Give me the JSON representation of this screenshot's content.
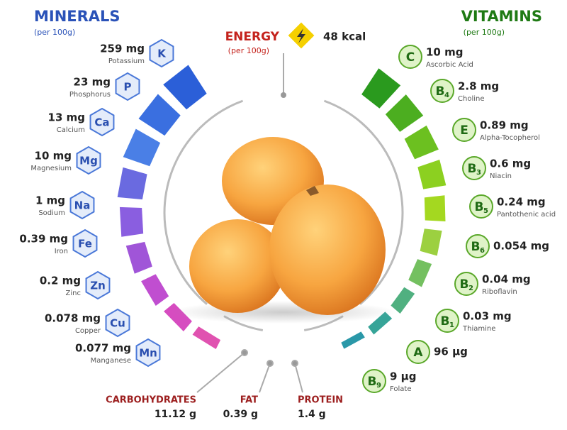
{
  "minerals": {
    "title": "MINERALS",
    "subtitle": "(per 100g)",
    "items": [
      {
        "amount": "259 mg",
        "name": "Potassium",
        "symbol": "K"
      },
      {
        "amount": "23 mg",
        "name": "Phosphorus",
        "symbol": "P"
      },
      {
        "amount": "13 mg",
        "name": "Calcium",
        "symbol": "Ca"
      },
      {
        "amount": "10 mg",
        "name": "Magnesium",
        "symbol": "Mg"
      },
      {
        "amount": "1 mg",
        "name": "Sodium",
        "symbol": "Na"
      },
      {
        "amount": "0.39 mg",
        "name": "Iron",
        "symbol": "Fe"
      },
      {
        "amount": "0.2 mg",
        "name": "Zinc",
        "symbol": "Zn"
      },
      {
        "amount": "0.078 mg",
        "name": "Copper",
        "symbol": "Cu"
      },
      {
        "amount": "0.077 mg",
        "name": "Manganese",
        "symbol": "Mn"
      }
    ]
  },
  "vitamins": {
    "title": "VITAMINS",
    "subtitle": "(per 100g)",
    "items": [
      {
        "amount": "10 mg",
        "name": "Ascorbic Acid",
        "letter": "C"
      },
      {
        "amount": "2.8 mg",
        "name": "Choline",
        "letter": "B",
        "sub": "4"
      },
      {
        "amount": "0.89 mg",
        "name": "Alpha-Tocopherol",
        "letter": "E"
      },
      {
        "amount": "0.6 mg",
        "name": "Niacin",
        "letter": "B",
        "sub": "3"
      },
      {
        "amount": "0.24 mg",
        "name": "Pantothenic acid",
        "letter": "B",
        "sub": "5"
      },
      {
        "amount": "0.054 mg",
        "letter": "B",
        "sub": "6"
      },
      {
        "amount": "0.04 mg",
        "name": "Riboflavin",
        "letter": "B",
        "sub": "2"
      },
      {
        "amount": "0.03 mg",
        "name": "Thiamine",
        "letter": "B",
        "sub": "1"
      },
      {
        "amount": "96 µg",
        "letter": "A"
      },
      {
        "amount": "9 µg",
        "name": "Folate",
        "letter": "B",
        "sub": "9"
      }
    ]
  },
  "energy": {
    "label": "ENERGY",
    "subtitle": "(per 100g)",
    "value": "48 kcal"
  },
  "macros": [
    {
      "label": "CARBOHYDRATES",
      "value": "11.12 g"
    },
    {
      "label": "FAT",
      "value": "0.39 g"
    },
    {
      "label": "PROTEIN",
      "value": "1.4 g"
    }
  ]
}
